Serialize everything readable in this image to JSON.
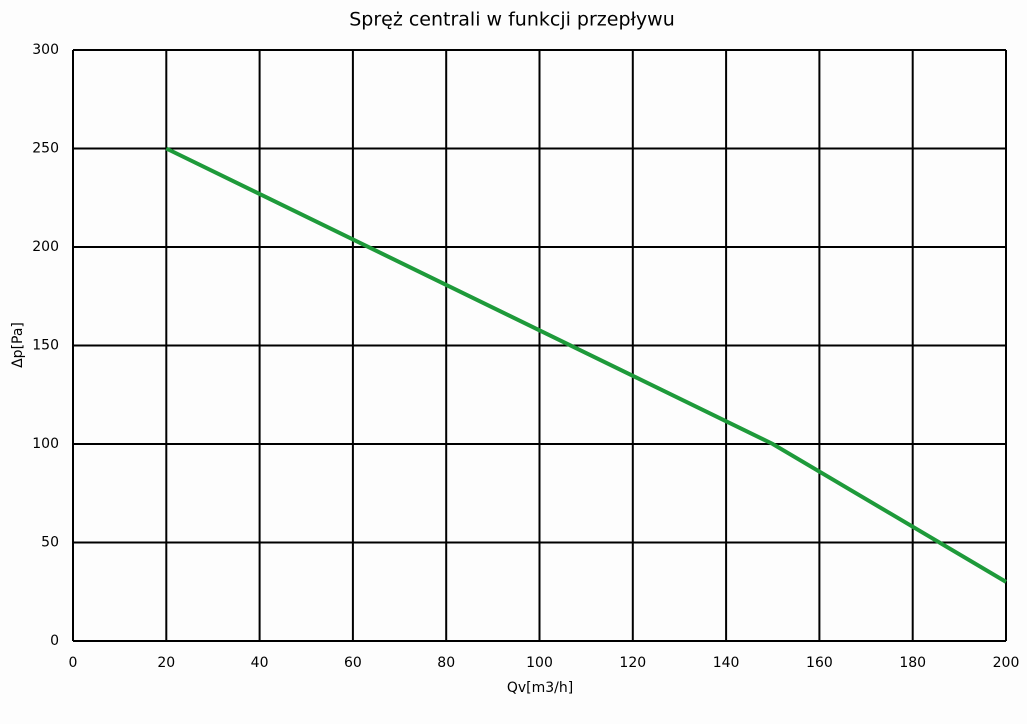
{
  "chart_data": {
    "type": "line",
    "title": "Spręż centrali w funkcji przepływu",
    "x_label": "Qv[m3/h]",
    "y_label": "Δp[Pa]",
    "x": [
      20,
      150,
      200
    ],
    "values": [
      250,
      100,
      30
    ],
    "color": "#1e9a3a",
    "xlim": [
      0,
      200
    ],
    "ylim": [
      0,
      300
    ],
    "xticks": [
      0,
      20,
      40,
      60,
      80,
      100,
      120,
      140,
      160,
      180,
      200
    ],
    "yticks": [
      0,
      50,
      100,
      150,
      200,
      250,
      300
    ],
    "grid": true
  }
}
